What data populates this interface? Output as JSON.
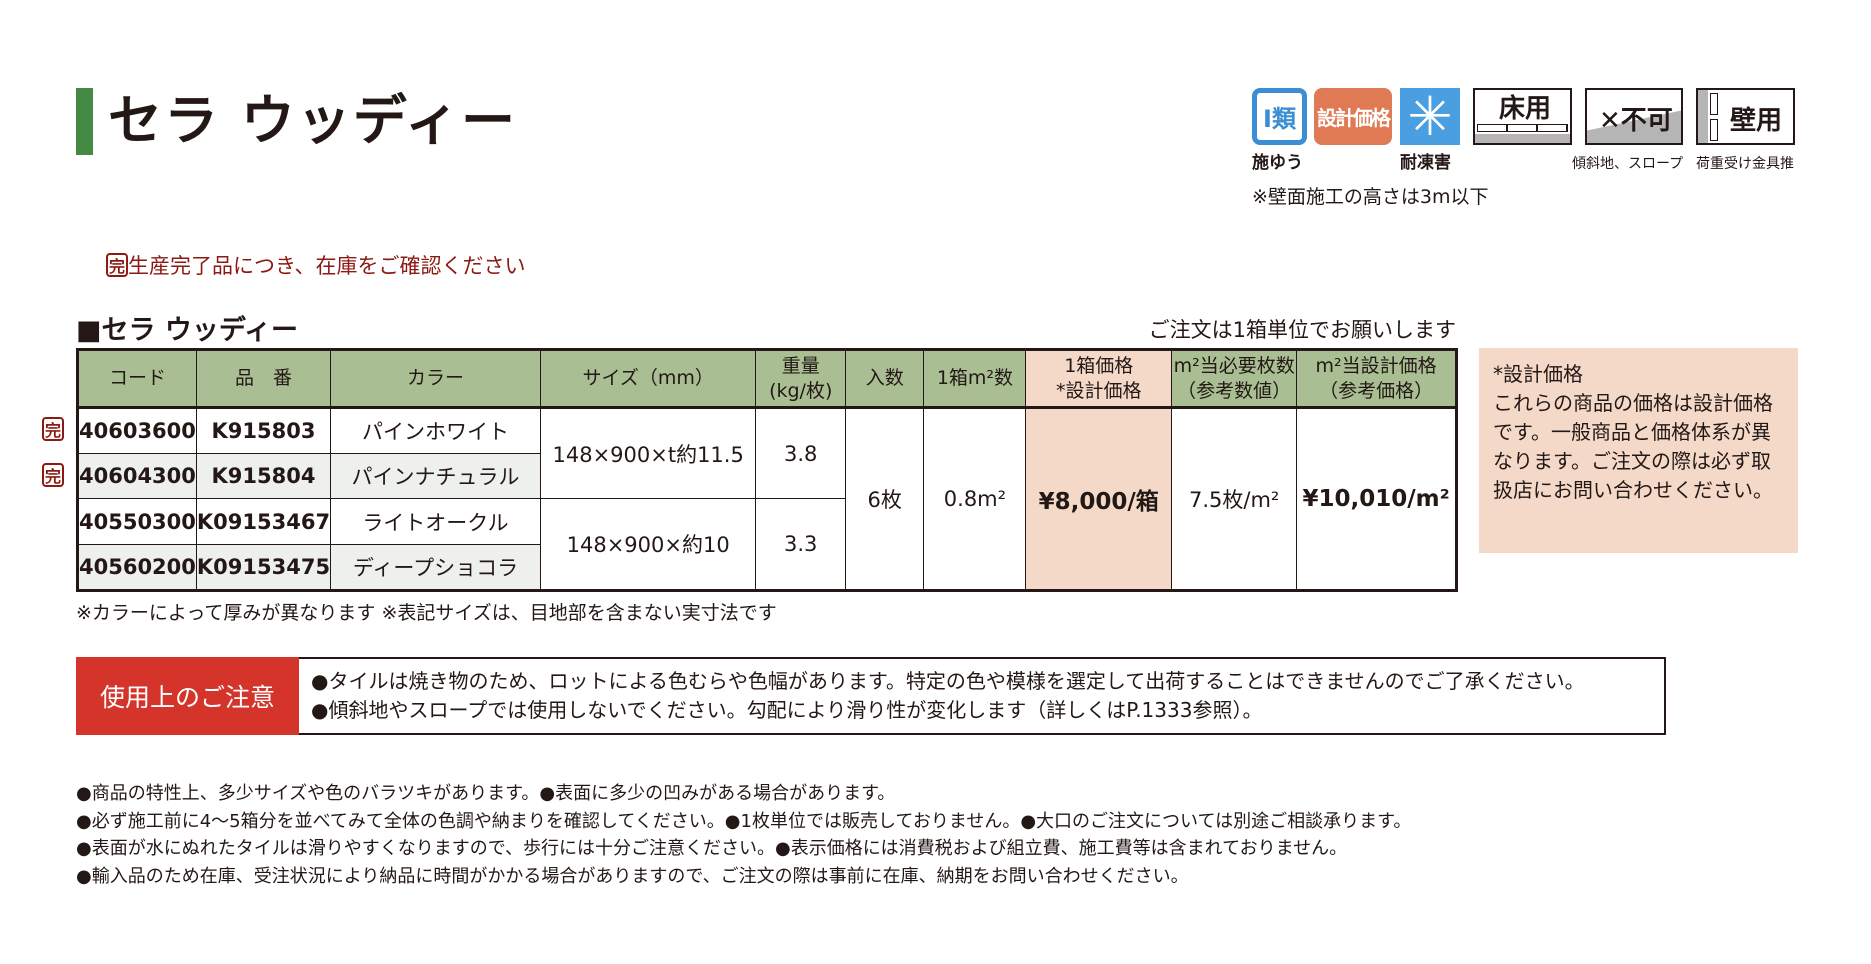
{
  "title": "セラ ウッディー",
  "icons": [
    {
      "name": "class-1-icon",
      "text": "I類",
      "label": "施ゆう",
      "color": "#3b8ed3"
    },
    {
      "name": "design-price-icon",
      "text": "設計価格",
      "color": "#e07a55"
    },
    {
      "name": "frost-resistant-icon",
      "text": "✳",
      "label": "耐凍害",
      "color": "#4a9fe0"
    },
    {
      "name": "floor-use-icon",
      "text": "床用"
    },
    {
      "name": "slope-not-allowed-icon",
      "text": "✕不可",
      "label": "傾斜地、スロープ"
    },
    {
      "name": "wall-use-icon",
      "text": "壁用",
      "label": "荷重受け金具推"
    }
  ],
  "wall_note": "※壁面施工の高さは3m以下",
  "discontinued_mark": "完",
  "discontinued_note": "生産完了品につき、在庫をご確認ください",
  "section_title": "■セラ ウッディー",
  "order_note": "ご注文は1箱単位でお願いします",
  "table": {
    "headers": [
      "コード",
      "品　番",
      "カラー",
      "サイズ（mm）",
      "重量\n(kg/枚)",
      "入数",
      "1箱m²数",
      "1箱価格\n*設計価格",
      "m²当必要枚数\n（参考数値）",
      "m²当設計価格\n（参考価格）"
    ],
    "rows": [
      {
        "code": "40603600",
        "part": "K915803",
        "color": "パインホワイト",
        "discontinued": true
      },
      {
        "code": "40604300",
        "part": "K915804",
        "color": "パインナチュラル",
        "discontinued": true
      },
      {
        "code": "40550300",
        "part": "K09153467",
        "color": "ライトオークル",
        "discontinued": false
      },
      {
        "code": "40560200",
        "part": "K09153475",
        "color": "ディープショコラ",
        "discontinued": false
      }
    ],
    "size_a": "148×900×t約11.5",
    "weight_a": "3.8",
    "size_b": "148×900×約10",
    "weight_b": "3.3",
    "qty": "6枚",
    "area": "0.8m²",
    "price": "¥8,000/箱",
    "pcs_per_m2": "7.5枚/m²",
    "price_per_m2": "¥10,010/m²"
  },
  "side_box": {
    "title": "*設計価格",
    "body": "これらの商品の価格は設計価格です。一般商品と価格体系が異なります。ご注文の際は必ず取扱店にお問い合わせください。"
  },
  "table_note": "※カラーによって厚みが異なります ※表記サイズは、目地部を含まない実寸法です",
  "caution": {
    "label": "使用上のご注意",
    "lines": [
      "●タイルは焼き物のため、ロットによる色むらや色幅があります。特定の色や模様を選定して出荷することはできませんのでご了承ください。",
      "●傾斜地やスロープでは使用しないでください。勾配により滑り性が変化します（詳しくはP.1333参照）。"
    ]
  },
  "bullets": [
    "●商品の特性上、多少サイズや色のバラツキがあります。●表面に多少の凹みがある場合があります。",
    "●必ず施工前に4～5箱分を並べてみて全体の色調や納まりを確認してください。●1枚単位では販売しておりません。●大口のご注文については別途ご相談承ります。",
    "●表面が水にぬれたタイルは滑りやすくなりますので、歩行には十分ご注意ください。●表示価格には消費税および組立費、施工費等は含まれておりません。",
    "●輸入品のため在庫、受注状況により納品に時間がかかる場合がありますので、ご注文の際は事前に在庫、納期をお問い合わせください。"
  ]
}
